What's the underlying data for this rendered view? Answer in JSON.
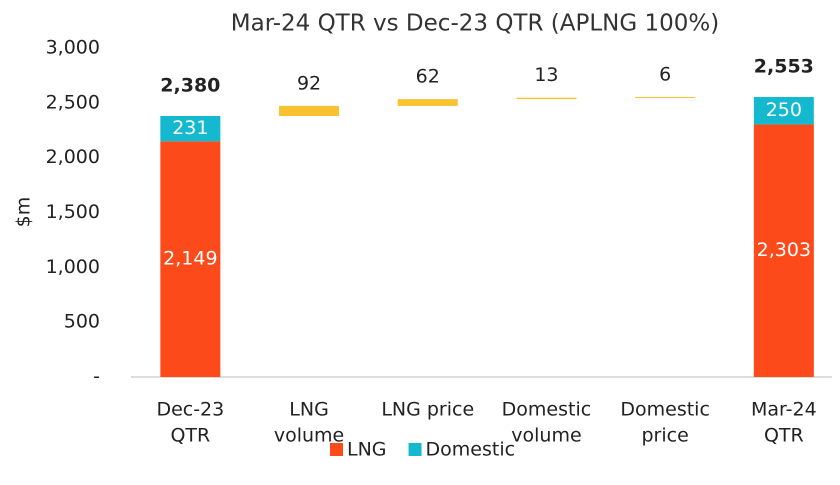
{
  "chart_data": {
    "type": "waterfall",
    "title": "Mar-24 QTR vs Dec-23 QTR (APLNG 100%)",
    "y_label": "$m",
    "categories": [
      [
        "Dec-23",
        "QTR"
      ],
      [
        "LNG",
        "volume"
      ],
      [
        "LNG price"
      ],
      [
        "Domestic",
        "volume"
      ],
      [
        "Domestic",
        "price"
      ],
      [
        "Mar-24",
        "QTR"
      ]
    ],
    "series": [
      {
        "name": "LNG",
        "color": "#fc4a1a",
        "values": [
          2149,
          null,
          null,
          null,
          null,
          2303
        ]
      },
      {
        "name": "Domestic",
        "color": "#14b9cf",
        "values": [
          231,
          null,
          null,
          null,
          null,
          250
        ]
      }
    ],
    "changes": {
      "color": "#f9c231",
      "values": [
        null,
        92,
        62,
        13,
        6,
        null
      ]
    },
    "totals": {
      "values": [
        2380,
        null,
        null,
        null,
        null,
        2553
      ],
      "value_labels": [
        "2,380",
        null,
        null,
        null,
        null,
        "2,553"
      ]
    },
    "series_value_labels": [
      [
        "2,149",
        null,
        null,
        null,
        null,
        "2,303"
      ],
      [
        "231",
        null,
        null,
        null,
        null,
        "250"
      ]
    ],
    "ylim": [
      0,
      3000
    ],
    "yticks": [
      {
        "value": 0,
        "label": "-"
      },
      500,
      {
        "value": 1000,
        "label": "1,000"
      },
      {
        "value": 1500,
        "label": "1,500"
      },
      {
        "value": 2000,
        "label": "2,000"
      },
      {
        "value": 2500,
        "label": "2,500"
      },
      {
        "value": 3000,
        "label": "3,000"
      }
    ],
    "legend": "bottom"
  }
}
